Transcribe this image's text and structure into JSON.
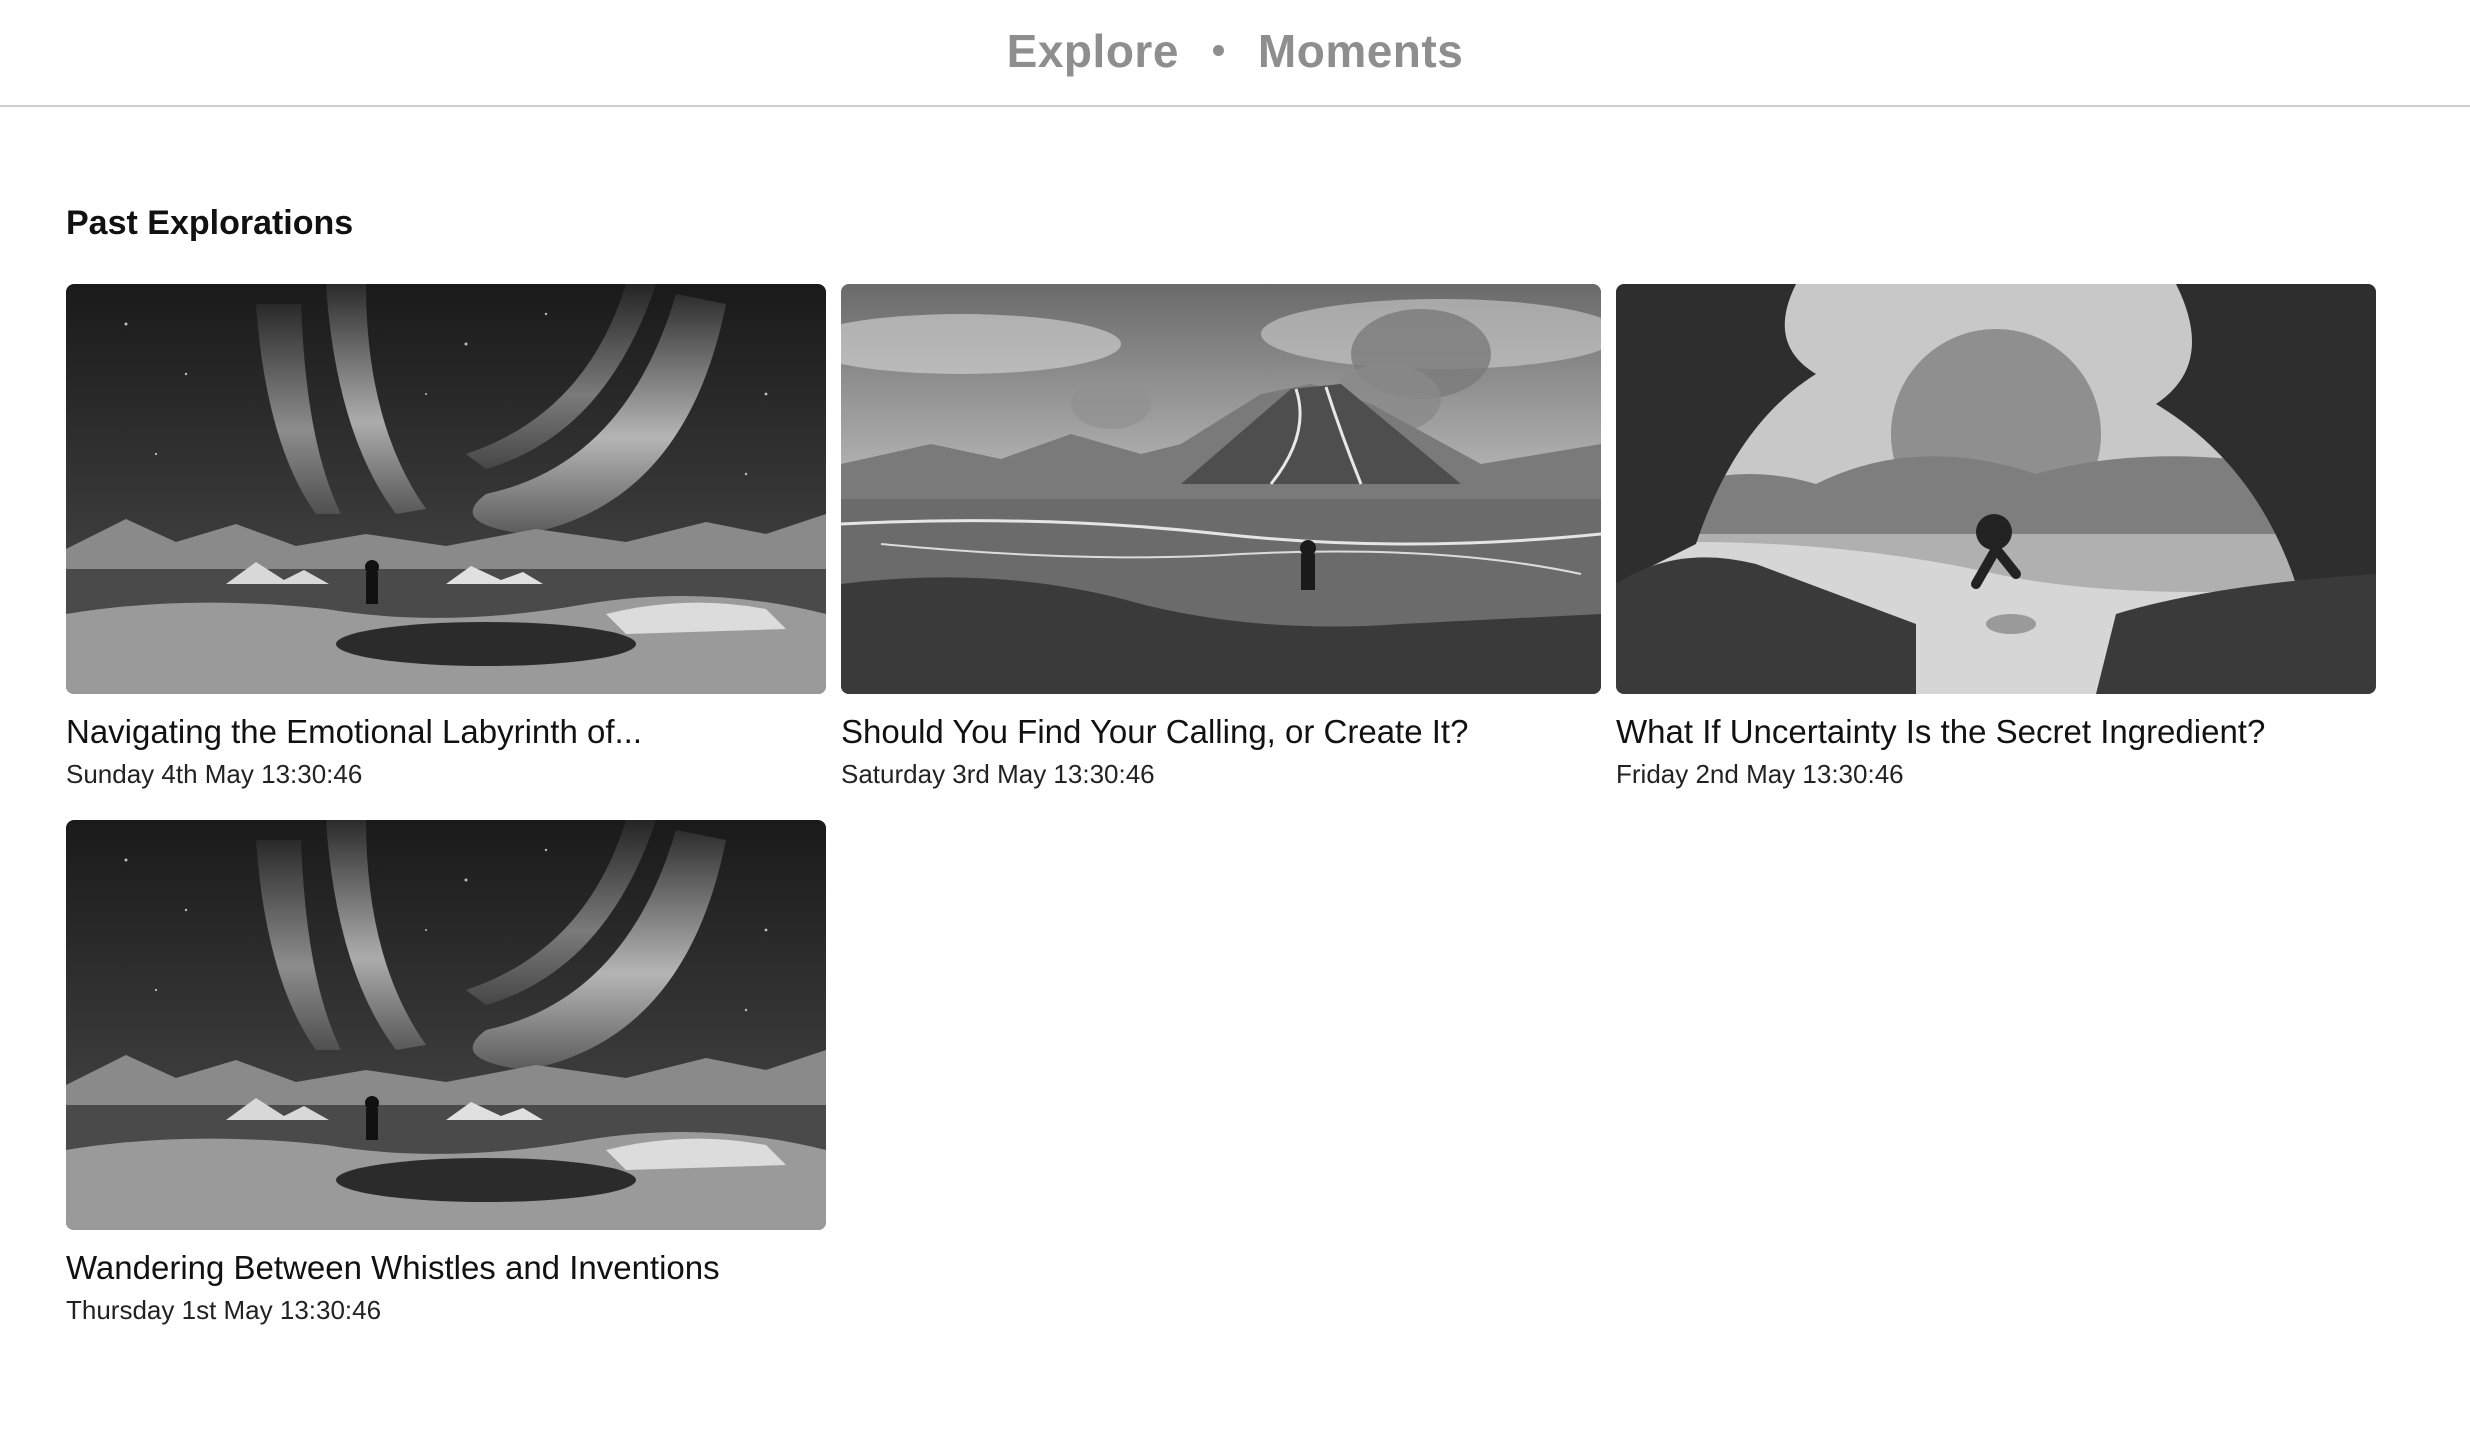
{
  "nav": {
    "explore": "Explore",
    "moments": "Moments"
  },
  "section_title": "Past Explorations",
  "cards": [
    {
      "title": "Navigating the Emotional Labyrinth of...",
      "date": "Sunday 4th May 13:30:46",
      "image": "aurora-icon"
    },
    {
      "title": "Should You Find Your Calling, or Create It?",
      "date": "Saturday 3rd May 13:30:46",
      "image": "volcano-icon"
    },
    {
      "title": "What If Uncertainty Is the Secret Ingredient?",
      "date": "Friday 2nd May 13:30:46",
      "image": "jungle-sun-icon"
    },
    {
      "title": "Wandering Between Whistles and Inventions",
      "date": "Thursday 1st May 13:30:46",
      "image": "aurora-icon"
    }
  ]
}
